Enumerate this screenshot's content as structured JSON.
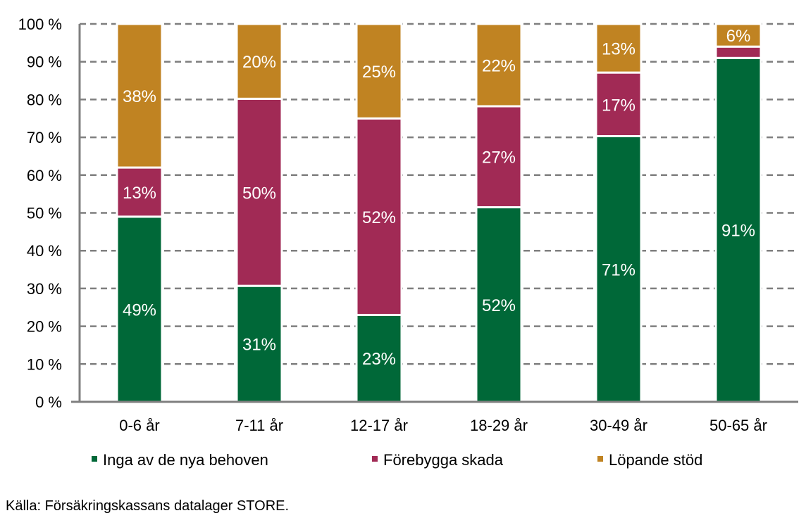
{
  "chart_data": {
    "type": "bar",
    "stacked": true,
    "categories": [
      "0-6 år",
      "7-11 år",
      "12-17 år",
      "18-29 år",
      "30-49 år",
      "50-65 år"
    ],
    "series": [
      {
        "name": "Inga av de nya behoven",
        "color": "#006838",
        "values": [
          49,
          31,
          23,
          52,
          71,
          91
        ],
        "labels": [
          "49%",
          "31%",
          "23%",
          "52%",
          "71%",
          "91%"
        ]
      },
      {
        "name": "Förebygga skada",
        "color": "#a12a55",
        "values": [
          13,
          50,
          52,
          27,
          17,
          3
        ],
        "labels": [
          "13%",
          "50%",
          "52%",
          "27%",
          "17%",
          null
        ]
      },
      {
        "name": "Löpande stöd",
        "color": "#c08322",
        "values": [
          38,
          20,
          25,
          22,
          13,
          6
        ],
        "labels": [
          "38%",
          "20%",
          "25%",
          "22%",
          "13%",
          "6%"
        ]
      }
    ],
    "y_ticks": [
      "0 %",
      "10 %",
      "20 %",
      "30 %",
      "40 %",
      "50 %",
      "60 %",
      "70 %",
      "80 %",
      "90 %",
      "100 %"
    ],
    "ylim": [
      0,
      100
    ],
    "grid": true,
    "legend_position": "bottom",
    "xlabel": "",
    "ylabel": ""
  },
  "source": "Källa: Försäkringskassans datalager STORE."
}
